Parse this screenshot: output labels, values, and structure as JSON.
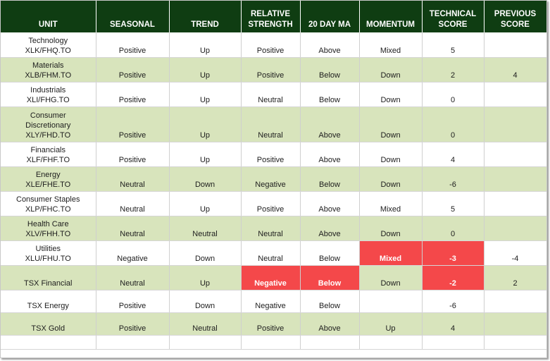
{
  "headers": {
    "unit": "UNIT",
    "seasonal": "SEASONAL",
    "trend": "TREND",
    "rs1": "RELATIVE",
    "rs2": "STRENGTH",
    "ma": "20 DAY MA",
    "momentum": "MOMENTUM",
    "ts1": "TECHNICAL",
    "ts2": "SCORE",
    "ps1": "PREVIOUS",
    "ps2": "SCORE"
  },
  "rows": [
    {
      "unit1": "Technology",
      "unit2": "XLK/FHQ.TO",
      "seasonal": "Positive",
      "trend": "Up",
      "rs": "Positive",
      "ma": "Above",
      "momentum": "Mixed",
      "score": "5",
      "prev": ""
    },
    {
      "unit1": "Materials",
      "unit2": "XLB/FHM.TO",
      "seasonal": "Positive",
      "trend": "Up",
      "rs": "Positive",
      "ma": "Below",
      "momentum": "Down",
      "score": "2",
      "prev": "4"
    },
    {
      "unit1": "Industrials",
      "unit2": "XLI/FHG.TO",
      "seasonal": "Positive",
      "trend": "Up",
      "rs": "Neutral",
      "ma": "Below",
      "momentum": "Down",
      "score": "0",
      "prev": ""
    },
    {
      "unit1": "Consumer",
      "unit1b": "Discretionary",
      "unit2": "XLY/FHD.TO",
      "seasonal": "Positive",
      "trend": "Up",
      "rs": "Neutral",
      "ma": "Above",
      "momentum": "Down",
      "score": "0",
      "prev": ""
    },
    {
      "unit1": "Financials",
      "unit2": "XLF/FHF.TO",
      "seasonal": "Positive",
      "trend": "Up",
      "rs": "Positive",
      "ma": "Above",
      "momentum": "Down",
      "score": "4",
      "prev": ""
    },
    {
      "unit1": "Energy",
      "unit2": "XLE/FHE.TO",
      "seasonal": "Neutral",
      "trend": "Down",
      "rs": "Negative",
      "ma": "Below",
      "momentum": "Down",
      "score": "-6",
      "prev": ""
    },
    {
      "unit1": "Consumer Staples",
      "unit2": "XLP/FHC.TO",
      "seasonal": "Neutral",
      "trend": "Up",
      "rs": "Positive",
      "ma": "Above",
      "momentum": "Mixed",
      "score": "5",
      "prev": ""
    },
    {
      "unit1": "Health Care",
      "unit2": "XLV/FHH.TO",
      "seasonal": "Neutral",
      "trend": "Neutral",
      "rs": "Neutral",
      "ma": "Above",
      "momentum": "Down",
      "score": "0",
      "prev": ""
    },
    {
      "unit1": "Utilities",
      "unit2": "XLU/FHU.TO",
      "seasonal": "Negative",
      "trend": "Down",
      "rs": "Neutral",
      "ma": "Below",
      "momentum": "Mixed",
      "score": "-3",
      "prev": "-4"
    },
    {
      "unit1": "TSX Financial",
      "seasonal": "Neutral",
      "trend": "Up",
      "rs": "Negative",
      "ma": "Below",
      "momentum": "Down",
      "score": "-2",
      "prev": "2"
    },
    {
      "unit1": "TSX Energy",
      "seasonal": "Positive",
      "trend": "Down",
      "rs": "Negative",
      "ma": "Below",
      "momentum": "",
      "score": "-6",
      "prev": ""
    },
    {
      "unit1": "TSX Gold",
      "seasonal": "Positive",
      "trend": "Neutral",
      "rs": "Positive",
      "ma": "Above",
      "momentum": "Up",
      "score": "4",
      "prev": ""
    }
  ],
  "colors": {
    "header_bg": "#0f3d12",
    "alt_row": "#d8e4bc",
    "highlight_red": "#f4484a"
  }
}
